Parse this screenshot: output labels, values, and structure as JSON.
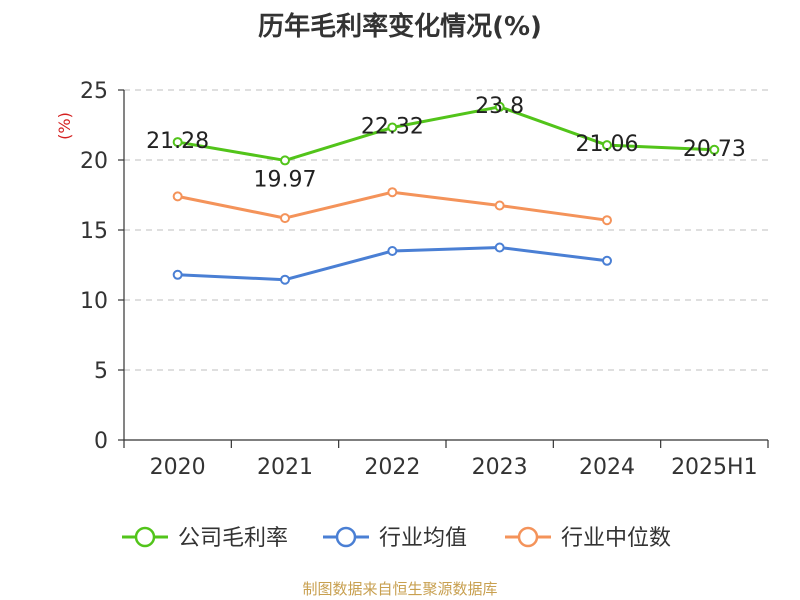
{
  "chart_data": {
    "type": "line",
    "title": "历年毛利率变化情况(%)",
    "ylabel": "(%)",
    "categories": [
      "2020",
      "2021",
      "2022",
      "2023",
      "2024",
      "2025H1"
    ],
    "ylim": [
      0,
      25
    ],
    "yticks": [
      0,
      5,
      10,
      15,
      20,
      25
    ],
    "grid": true,
    "legend_position": "bottom",
    "series": [
      {
        "name": "公司毛利率",
        "color": "#52c41a",
        "values": [
          21.28,
          19.97,
          22.32,
          23.8,
          21.06,
          20.73
        ],
        "labels": [
          "21.28",
          "19.97",
          "22.32",
          "23.8",
          "21.06",
          "20.73"
        ]
      },
      {
        "name": "行业均值",
        "color": "#4a7fd4",
        "values": [
          11.8,
          11.45,
          13.5,
          13.75,
          12.8,
          null
        ]
      },
      {
        "name": "行业中位数",
        "color": "#f4935a",
        "values": [
          17.4,
          15.85,
          17.7,
          16.75,
          15.7,
          null
        ]
      }
    ]
  },
  "source_text": "制图数据来自恒生聚源数据库",
  "colors": {
    "source": "#c8a050",
    "ylabel": "#d42020",
    "grid": "#cccccc",
    "axis": "#333333"
  }
}
